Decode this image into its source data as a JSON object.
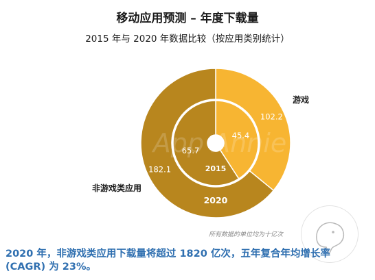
{
  "header": {
    "title": "移动应用预测 – 年度下载量",
    "subtitle": "2015 年与 2020 年数据比较（按应用类别统计）"
  },
  "chart_data": {
    "type": "pie",
    "variant": "nested-donut",
    "unit_note": "所有数据的单位均为十亿次",
    "colors": {
      "游戏": "#f7b532",
      "非游戏类应用": "#b8861e"
    },
    "rings": [
      {
        "name": "2015",
        "slices": [
          {
            "category": "游戏",
            "value": 45.4
          },
          {
            "category": "非游戏类应用",
            "value": 65.7
          }
        ]
      },
      {
        "name": "2020",
        "slices": [
          {
            "category": "游戏",
            "value": 102.2
          },
          {
            "category": "非游戏类应用",
            "value": 182.1
          }
        ]
      }
    ],
    "category_labels": [
      "游戏",
      "非游戏类应用"
    ]
  },
  "watermark": "App Annie",
  "footer": {
    "text_line1": "2020 年，非游戏类应用下载量将超过 1820 亿次，五年复合年均增长率",
    "text_line2": "(CAGR) 为 23%。"
  }
}
